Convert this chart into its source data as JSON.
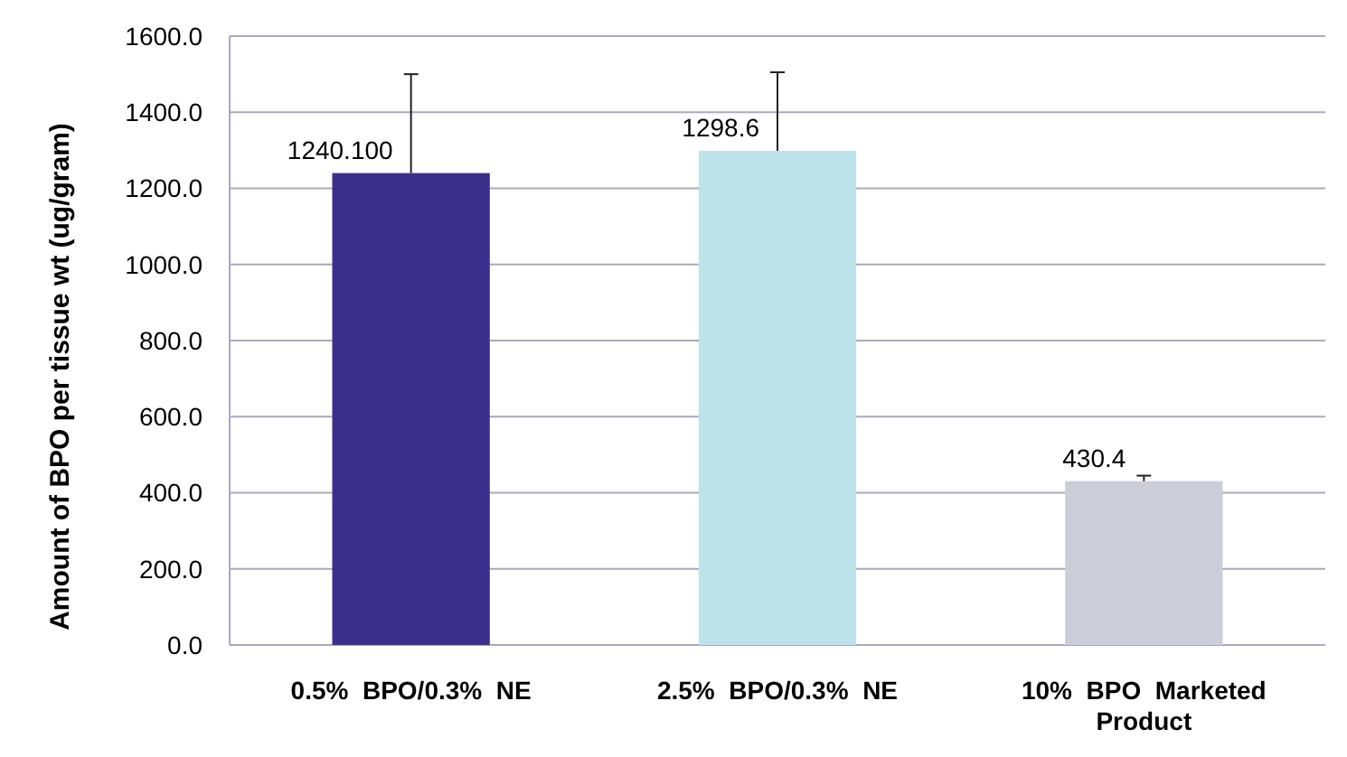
{
  "chart_data": {
    "type": "bar",
    "ylabel": "Amount of BPO per tissue wt (ug/gram)",
    "categories": [
      "0.5%  BPO/0.3%  NE",
      "2.5%  BPO/0.3%  NE",
      "10%  BPO  Marketed Product"
    ],
    "values": [
      1240.1,
      1298.6,
      430.4
    ],
    "colors": [
      "#3b2f8c",
      "#bde3ea",
      "#cbced9"
    ],
    "errors": [
      [
        1240.1,
        1500
      ],
      [
        1298.6,
        1505
      ],
      [
        430.4,
        445
      ]
    ],
    "value_labels": [
      "1240.100",
      "1298.6",
      "430.4"
    ],
    "ylim": [
      0,
      1600
    ],
    "yticks": [
      {
        "value": 0,
        "label": "0.0"
      },
      {
        "value": 200,
        "label": "200.0"
      },
      {
        "value": 400,
        "label": "400.0"
      },
      {
        "value": 600,
        "label": "600.0"
      },
      {
        "value": 800,
        "label": "800.0"
      },
      {
        "value": 1000,
        "label": "1000.0"
      },
      {
        "value": 1200,
        "label": "1200.0"
      },
      {
        "value": 1400,
        "label": "1400.0"
      },
      {
        "value": 1600,
        "label": "1600.0"
      }
    ],
    "grid": "y"
  }
}
